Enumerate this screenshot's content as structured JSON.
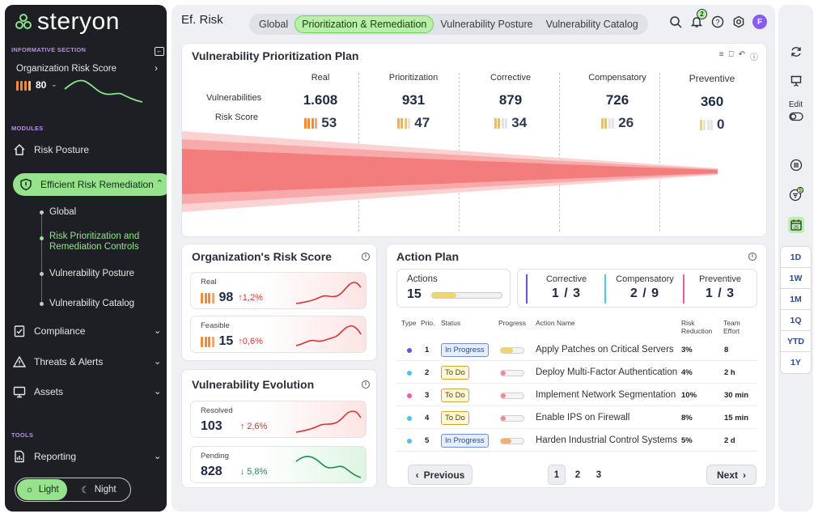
{
  "brand": {
    "name": "steryon"
  },
  "sidebar": {
    "informative_title": "INFORMATIVE SECTION",
    "org_risk_label": "Organization Risk Score",
    "org_risk_value": "80",
    "modules_title": "MODULES",
    "modules": [
      {
        "label": "Risk Posture",
        "icon": "home-icon"
      },
      {
        "label": "Efficient Risk Remediation",
        "icon": "shield-icon",
        "active": true
      },
      {
        "label": "Compliance",
        "icon": "checklist-icon"
      },
      {
        "label": "Threats & Alerts",
        "icon": "warning-icon"
      },
      {
        "label": "Assets",
        "icon": "monitor-icon"
      }
    ],
    "submodules": [
      {
        "label": "Global"
      },
      {
        "label": "Risk Prioritization and Remediation Controls",
        "active": true
      },
      {
        "label": "Vulnerability Posture"
      },
      {
        "label": "Vulnerability Catalog"
      }
    ],
    "tools_title": "TOOLS",
    "tools": [
      {
        "label": "Reporting",
        "icon": "report-icon"
      }
    ],
    "theme": {
      "light": "Light",
      "night": "Night",
      "selected": "light"
    }
  },
  "header": {
    "title": "Ef. Risk",
    "tabs": [
      {
        "label": "Global"
      },
      {
        "label": "Prioritization & Remediation",
        "active": true
      },
      {
        "label": "Vulnerability Posture"
      },
      {
        "label": "Vulnerability Catalog"
      }
    ],
    "notification_count": "2",
    "user_initial": "F"
  },
  "vpp": {
    "title": "Vulnerability Prioritization Plan",
    "row_labels": {
      "vulnerabilities": "Vulnerabilities",
      "risk_score": "Risk Score"
    },
    "columns": [
      {
        "label": "Real",
        "vulnerabilities": "1.608",
        "risk_score": "53"
      },
      {
        "label": "Prioritization",
        "vulnerabilities": "931",
        "risk_score": "47"
      },
      {
        "label": "Corrective",
        "vulnerabilities": "879",
        "risk_score": "34"
      },
      {
        "label": "Compensatory",
        "vulnerabilities": "726",
        "risk_score": "26"
      },
      {
        "label": "Preventive",
        "vulnerabilities": "360",
        "risk_score": "0"
      }
    ]
  },
  "org_risk": {
    "title": "Organization's Risk Score",
    "cards": [
      {
        "label": "Real",
        "value": "98",
        "change": "↑1,2%"
      },
      {
        "label": "Feasible",
        "value": "15",
        "change": "↑0,6%"
      }
    ]
  },
  "vuln_evolution": {
    "title": "Vulnerability Evolution",
    "cards": [
      {
        "label": "Resolved",
        "value": "103",
        "change": "↑ 2,6%"
      },
      {
        "label": "Pending",
        "value": "828",
        "change": "↓ 5,8%"
      }
    ]
  },
  "action_plan": {
    "title": "Action Plan",
    "actions_label": "Actions",
    "actions_value": "15",
    "actions_progress": 0.35,
    "types": [
      {
        "label": "Corrective",
        "value": "1 / 3",
        "color": "#5b5bd6"
      },
      {
        "label": "Compensatory",
        "value": "2 / 9",
        "color": "#4fc3e8"
      },
      {
        "label": "Preventive",
        "value": "1 / 3",
        "color": "#e65fa8"
      }
    ],
    "headers": {
      "type": "Type",
      "prio": "Prio.",
      "status": "Status",
      "progress": "Progress",
      "action": "Action Name",
      "risk_red_1": "Risk",
      "risk_red_2": "Reduction",
      "team_1": "Team",
      "team_2": "Effort"
    },
    "rows": [
      {
        "prio": "1",
        "status": "In Progress",
        "status_kind": "prog",
        "progress": 0.55,
        "action": "Apply Patches on Critical Servers",
        "risk": "3%",
        "effort": "8",
        "dot": "#5b5bd6",
        "bar": "#f3d36a"
      },
      {
        "prio": "2",
        "status": "To Do",
        "status_kind": "todo",
        "progress": 0.05,
        "action": "Deploy Multi-Factor Authentication",
        "risk": "4%",
        "effort": "2 h",
        "dot": "#4fc3e8",
        "bar": "#f08a8a"
      },
      {
        "prio": "3",
        "status": "To Do",
        "status_kind": "todo",
        "progress": 0.05,
        "action": "Implement Network Segmentation",
        "risk": "10%",
        "effort": "30 min",
        "dot": "#e65fa8",
        "bar": "#f08a8a"
      },
      {
        "prio": "4",
        "status": "To Do",
        "status_kind": "todo",
        "progress": 0.05,
        "action": "Enable IPS on Firewall",
        "risk": "8%",
        "effort": "15 min",
        "dot": "#4fc3e8",
        "bar": "#f08a8a"
      },
      {
        "prio": "5",
        "status": "In Progress",
        "status_kind": "prog",
        "progress": 0.45,
        "action": "Harden Industrial Control Systems",
        "risk": "5%",
        "effort": "2 d",
        "dot": "#4fc3e8",
        "bar": "#f3b06a"
      }
    ],
    "pagination": {
      "prev": "Previous",
      "next": "Next",
      "pages": [
        "1",
        "2",
        "3"
      ],
      "current": "1"
    }
  },
  "rail": {
    "edit_label": "Edit",
    "filter_count": "5",
    "calendar_day": "25",
    "ranges": [
      "1D",
      "1W",
      "1M",
      "1Q",
      "YTD",
      "1Y"
    ]
  },
  "colors": {
    "accent_green": "#97e28c",
    "sidebar_bg": "#1d1f24",
    "danger": "#d93434",
    "success": "#1d8b4c"
  }
}
